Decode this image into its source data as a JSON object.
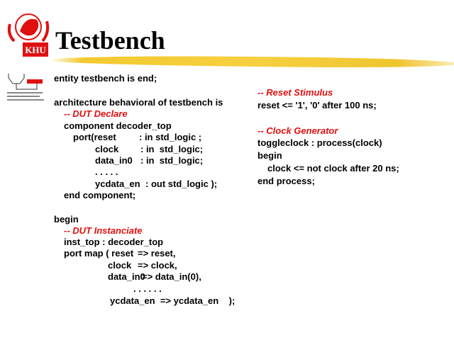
{
  "slide": {
    "title": "Testbench",
    "logo_text": "KHU",
    "accent_color": "#e01010",
    "highlight_color": "#f3c92e"
  },
  "left_code": {
    "l1": "entity testbench is end;",
    "l2": "architecture behavioral of testbench is",
    "c1": "-- DUT Declare",
    "l3": "component decoder_top",
    "p1a": "port(reset",
    "p1b": ": in std_logic ;",
    "p2a": "clock",
    "p2b": ": in  std_logic;",
    "p3a": "data_in0",
    "p3b": ": in  std_logic;",
    "p4": ". . . . .",
    "p5a": "ycdata_en",
    "p5b": ": out std_logic );",
    "l4": "end component;",
    "l5": "begin",
    "c2": "-- DUT Instanciate",
    "l6": "inst_top : decoder_top",
    "m1a": "port map ( reset",
    "m1b": "=> reset,",
    "m2a": "clock",
    "m2b": "=> clock,",
    "m3a": "data_in0",
    "m3b": "=> data_in(0),",
    "m4": ". . . . . .",
    "m5": "ycdata_en  => ycdata_en    );"
  },
  "right_code": {
    "c1": "-- Reset Stimulus",
    "r1": "reset <= '1', '0' after 100 ns;",
    "c2": "-- Clock Generator",
    "r2": "toggleclock : process(clock)",
    "r3": "begin",
    "r4": "clock <= not clock after 20 ns;",
    "r5": "end process;"
  }
}
